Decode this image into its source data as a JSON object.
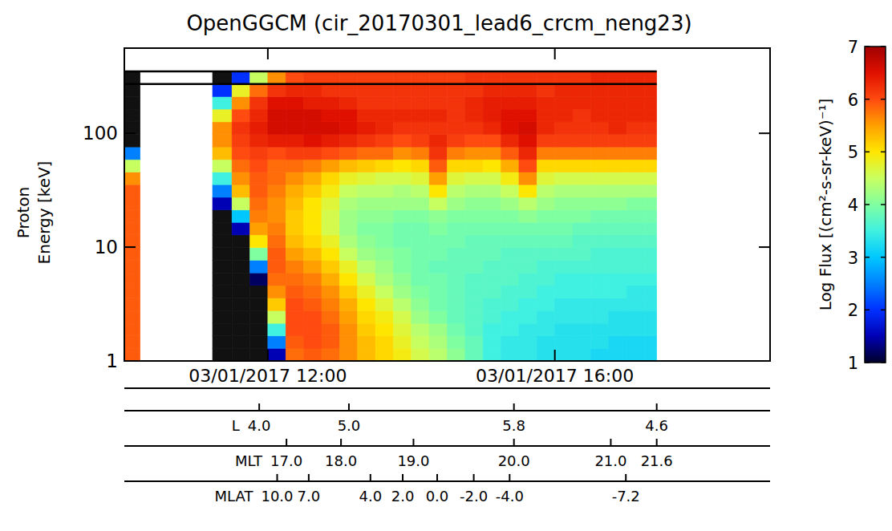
{
  "chart_data": {
    "type": "heatmap",
    "title": "OpenGGCM (cir_20170301_lead6_crcm_neng23)",
    "y_label": "Proton Energy [keV]",
    "log": "y",
    "xlim": [
      10,
      19
    ],
    "xticks": [
      {
        "value": 12,
        "label": "03/01/2017 12:00"
      },
      {
        "value": 16,
        "label": "03/01/2017 16:00"
      }
    ],
    "ylim": [
      1,
      560
    ],
    "yticks": [
      1,
      10,
      100
    ],
    "x_edges": [
      10,
      10.22,
      11.23,
      11.5,
      11.75,
      12,
      12.25,
      12.5,
      12.75,
      13,
      13.25,
      13.5,
      13.75,
      14,
      14.25,
      14.5,
      14.75,
      15,
      15.25,
      15.5,
      15.75,
      16,
      16.25,
      16.5,
      16.75,
      17,
      17.25,
      17.42
    ],
    "y_edges": [
      1,
      1.29,
      1.66,
      2.14,
      2.77,
      3.57,
      4.6,
      5.94,
      7.67,
      9.89,
      12.8,
      16.5,
      21.2,
      27.4,
      35.4,
      45.6,
      58.8,
      75.9,
      97.9,
      126,
      163,
      210,
      271,
      350
    ],
    "cells": [
      [
        5.9,
        5.9,
        5.9,
        5.9,
        5.9,
        5.9,
        5.9,
        5.9,
        5.9,
        5.9,
        5.9,
        5.9,
        5.9,
        5.9,
        5.6,
        4.5,
        2.5,
        0,
        0,
        0,
        0,
        0,
        0
      ],
      [
        null,
        null,
        null,
        null,
        null,
        null,
        null,
        null,
        null,
        null,
        null,
        null,
        null,
        null,
        null,
        null,
        null,
        null,
        null,
        null,
        null,
        null,
        null
      ],
      [
        0,
        0,
        0,
        0,
        0,
        0,
        0,
        0,
        0,
        0,
        0,
        0,
        1.5,
        2.5,
        3.5,
        4.5,
        5.3,
        5.6,
        5.6,
        4.8,
        3.5,
        2.0,
        0
      ],
      [
        0,
        0,
        0,
        0,
        0,
        0,
        0,
        0,
        0,
        0,
        1.5,
        3.0,
        4.5,
        5.3,
        5.6,
        5.8,
        6.0,
        6.1,
        6.2,
        6.0,
        5.6,
        4.8,
        2.0
      ],
      [
        0,
        0,
        0,
        0,
        0,
        0,
        1.2,
        2.5,
        4.0,
        5.0,
        5.5,
        5.7,
        5.8,
        5.9,
        5.9,
        6.0,
        6.1,
        6.3,
        6.4,
        6.3,
        6.2,
        5.8,
        4.5
      ],
      [
        1.5,
        2.5,
        3.5,
        4.5,
        5.2,
        5.6,
        5.8,
        5.9,
        5.9,
        5.8,
        5.7,
        5.6,
        5.6,
        5.7,
        5.8,
        5.8,
        6.0,
        6.4,
        6.6,
        6.6,
        6.5,
        6.2,
        5.6
      ],
      [
        5.8,
        5.9,
        6.0,
        6.0,
        6.0,
        5.9,
        5.8,
        5.7,
        5.5,
        5.3,
        5.2,
        5.2,
        5.3,
        5.4,
        5.6,
        5.8,
        6.1,
        6.4,
        6.6,
        6.6,
        6.5,
        6.3,
        6.0
      ],
      [
        5.9,
        6.0,
        6.0,
        6.0,
        5.9,
        5.8,
        5.7,
        5.5,
        5.3,
        5.1,
        5.0,
        5.0,
        5.0,
        5.2,
        5.4,
        5.7,
        6.1,
        6.5,
        6.6,
        6.6,
        6.4,
        6.3,
        6.1
      ],
      [
        5.8,
        5.9,
        5.9,
        5.8,
        5.7,
        5.6,
        5.4,
        5.2,
        5.0,
        4.8,
        4.6,
        4.6,
        4.7,
        4.9,
        5.1,
        5.5,
        6.0,
        6.4,
        6.6,
        6.5,
        6.4,
        6.2,
        6.1
      ],
      [
        5.6,
        5.6,
        5.6,
        5.5,
        5.4,
        5.2,
        5.0,
        4.8,
        4.5,
        4.3,
        4.2,
        4.2,
        4.3,
        4.5,
        4.8,
        5.3,
        5.9,
        6.3,
        6.5,
        6.5,
        6.3,
        6.2,
        6.1
      ],
      [
        5.3,
        5.3,
        5.2,
        5.1,
        5.0,
        4.8,
        4.6,
        4.4,
        4.2,
        4.1,
        4.0,
        4.1,
        4.2,
        4.4,
        4.7,
        5.2,
        5.8,
        6.2,
        6.4,
        6.3,
        6.2,
        6.2,
        6.1
      ],
      [
        5.1,
        5.1,
        5.0,
        4.9,
        4.7,
        4.5,
        4.3,
        4.2,
        4.1,
        4.0,
        4.0,
        4.1,
        4.2,
        4.4,
        4.6,
        5.1,
        5.8,
        6.1,
        6.3,
        6.3,
        6.2,
        6.2,
        6.1
      ],
      [
        4.9,
        4.8,
        4.7,
        4.6,
        4.4,
        4.2,
        4.1,
        4.0,
        4.0,
        3.9,
        3.9,
        4.0,
        4.2,
        4.3,
        4.6,
        5.0,
        5.6,
        6.0,
        6.2,
        6.3,
        6.2,
        6.2,
        6.1
      ],
      [
        4.6,
        4.5,
        4.4,
        4.2,
        4.1,
        4.0,
        3.9,
        3.9,
        3.9,
        3.9,
        3.9,
        4.0,
        4.2,
        4.4,
        4.7,
        5.1,
        5.7,
        6.1,
        6.2,
        6.3,
        6.2,
        6.2,
        6.1
      ],
      [
        4.4,
        4.3,
        4.2,
        4.0,
        3.9,
        3.9,
        3.9,
        3.8,
        3.9,
        3.9,
        4.0,
        4.1,
        4.5,
        5.0,
        5.5,
        5.9,
        6.2,
        6.3,
        6.2,
        6.3,
        6.2,
        6.2,
        6.1
      ],
      [
        4.1,
        4.0,
        3.9,
        3.8,
        3.8,
        3.8,
        3.8,
        3.8,
        3.8,
        3.9,
        3.9,
        4.0,
        4.2,
        4.4,
        4.7,
        5.1,
        5.7,
        6.1,
        6.2,
        6.2,
        6.2,
        6.2,
        6.1
      ],
      [
        3.8,
        3.8,
        3.7,
        3.7,
        3.7,
        3.7,
        3.7,
        3.8,
        3.8,
        3.8,
        3.9,
        4.0,
        4.1,
        4.3,
        4.6,
        5.1,
        5.6,
        6.0,
        6.2,
        6.3,
        6.3,
        6.2,
        6.2
      ],
      [
        3.5,
        3.5,
        3.5,
        3.6,
        3.6,
        3.7,
        3.7,
        3.7,
        3.8,
        3.8,
        3.9,
        4.0,
        4.1,
        4.3,
        4.6,
        5.0,
        5.6,
        6.0,
        6.3,
        6.4,
        6.4,
        6.3,
        6.2
      ],
      [
        3.4,
        3.4,
        3.5,
        3.5,
        3.6,
        3.6,
        3.7,
        3.7,
        3.7,
        3.8,
        3.9,
        4.0,
        4.2,
        4.5,
        4.9,
        5.4,
        5.9,
        6.3,
        6.5,
        6.5,
        6.4,
        6.3,
        6.2
      ],
      [
        3.4,
        3.4,
        3.4,
        3.5,
        3.5,
        3.6,
        3.6,
        3.7,
        3.7,
        3.8,
        3.9,
        4.1,
        4.4,
        5.0,
        5.6,
        6.0,
        6.3,
        6.5,
        6.6,
        6.5,
        6.4,
        6.3,
        6.2
      ],
      [
        3.3,
        3.3,
        3.4,
        3.4,
        3.5,
        3.5,
        3.6,
        3.6,
        3.7,
        3.8,
        3.9,
        4.0,
        4.2,
        4.4,
        4.7,
        5.1,
        5.7,
        6.1,
        6.3,
        6.3,
        6.3,
        6.2,
        6.2
      ],
      [
        3.3,
        3.3,
        3.3,
        3.4,
        3.4,
        3.5,
        3.5,
        3.6,
        3.7,
        3.8,
        3.9,
        4.0,
        4.1,
        4.3,
        4.6,
        5.1,
        5.7,
        6.1,
        6.2,
        6.3,
        6.3,
        6.3,
        6.2
      ],
      [
        3.3,
        3.3,
        3.3,
        3.4,
        3.4,
        3.5,
        3.5,
        3.6,
        3.7,
        3.7,
        3.8,
        4.0,
        4.1,
        4.3,
        4.6,
        5.1,
        5.7,
        6.1,
        6.2,
        6.2,
        6.3,
        6.3,
        6.2
      ],
      [
        3.2,
        3.3,
        3.3,
        3.4,
        3.4,
        3.5,
        3.5,
        3.6,
        3.6,
        3.7,
        3.8,
        3.9,
        4.1,
        4.3,
        4.6,
        5.1,
        5.7,
        6.1,
        6.2,
        6.3,
        6.3,
        6.3,
        6.3
      ],
      [
        3.2,
        3.2,
        3.3,
        3.3,
        3.4,
        3.5,
        3.5,
        3.6,
        3.6,
        3.7,
        3.8,
        3.9,
        4.1,
        4.3,
        4.6,
        5.1,
        5.7,
        6.1,
        6.3,
        6.3,
        6.3,
        6.3,
        6.3
      ],
      [
        3.2,
        3.2,
        3.3,
        3.3,
        3.4,
        3.4,
        3.5,
        3.6,
        3.6,
        3.7,
        3.8,
        3.9,
        4.0,
        4.3,
        4.6,
        5.1,
        5.7,
        6.1,
        6.2,
        6.3,
        6.3,
        6.3,
        6.3
      ],
      [
        3.2,
        3.2,
        3.3,
        3.3,
        3.4,
        3.4,
        3.5,
        3.6,
        3.6,
        3.7,
        3.8,
        3.9,
        4.0,
        4.3,
        4.6,
        5.1,
        5.7,
        6.1,
        6.2,
        6.3,
        6.3,
        6.3,
        6.3
      ]
    ],
    "colorbar": {
      "label": "Log Flux [(cm²-s-sr-keV)⁻¹]",
      "range": [
        1,
        7
      ],
      "ticks": [
        1,
        2,
        3,
        4,
        5,
        6,
        7
      ]
    },
    "extra_axes": [
      {
        "name": "L",
        "ticks": [
          {
            "value": 11.88,
            "label": "4.0"
          },
          {
            "value": 13.13,
            "label": "5.0"
          },
          {
            "value": 15.43,
            "label": "5.8"
          },
          {
            "value": 17.42,
            "label": "4.6"
          }
        ]
      },
      {
        "name": "MLT",
        "ticks": [
          {
            "value": 12.26,
            "label": "17.0"
          },
          {
            "value": 13.02,
            "label": "18.0"
          },
          {
            "value": 14.03,
            "label": "19.0"
          },
          {
            "value": 15.43,
            "label": "20.0"
          },
          {
            "value": 16.78,
            "label": "21.0"
          },
          {
            "value": 17.42,
            "label": "21.6"
          }
        ]
      },
      {
        "name": "MLAT",
        "ticks": [
          {
            "value": 12.13,
            "label": "10.0"
          },
          {
            "value": 12.57,
            "label": "7.0"
          },
          {
            "value": 13.43,
            "label": "4.0"
          },
          {
            "value": 13.88,
            "label": "2.0"
          },
          {
            "value": 14.36,
            "label": "0.0"
          },
          {
            "value": 14.87,
            "label": "-2.0"
          },
          {
            "value": 15.37,
            "label": "-4.0"
          },
          {
            "value": 16.99,
            "label": "-7.2"
          }
        ]
      }
    ]
  }
}
